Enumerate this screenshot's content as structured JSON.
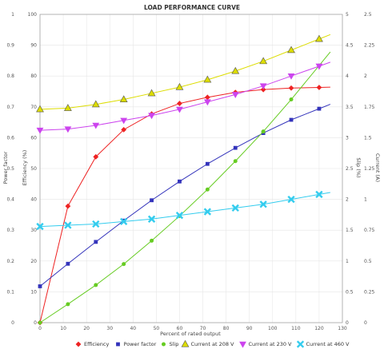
{
  "chart_data": {
    "type": "line",
    "title": "LOAD PERFORMANCE CURVE",
    "xlabel": "Percent of rated output",
    "ylabel_left_outer": "Power factor",
    "ylabel_left_inner": "Efficiency (%)",
    "ylabel_right_inner": "Slip (%)",
    "ylabel_right_outer": "Current (A)",
    "x_ticks": [
      "0",
      "10",
      "20",
      "30",
      "40",
      "50",
      "60",
      "70",
      "80",
      "90",
      "100",
      "110",
      "120",
      "130"
    ],
    "left_outer_ticks": [
      "0",
      "0.1",
      "0.2",
      "0.3",
      "0.4",
      "0.5",
      "0.6",
      "0.7",
      "0.8",
      "0.9",
      "1"
    ],
    "left_inner_ticks": [
      "0",
      "10",
      "20",
      "30",
      "40",
      "50",
      "60",
      "70",
      "80",
      "90",
      "100"
    ],
    "right_inner_ticks": [
      "0",
      "0.5",
      "1",
      "1.5",
      "2",
      "2.5",
      "3",
      "3.5",
      "4",
      "4.5",
      "5"
    ],
    "right_outer_ticks": [
      "0",
      "0.25",
      "0.5",
      "0.75",
      "1",
      "1.25",
      "1.5",
      "1.75",
      "2",
      "2.25",
      "2.5"
    ],
    "xlim": [
      0,
      130
    ],
    "ylim_percent": [
      0,
      100
    ],
    "x": [
      0,
      12,
      24,
      36,
      48,
      60,
      72,
      84,
      96,
      108,
      120
    ],
    "series": [
      {
        "name": "Efficiency",
        "color": "#ee2222",
        "marker": "diamond",
        "values": [
          0,
          37.8,
          53.8,
          62.6,
          67.7,
          71.1,
          73.1,
          74.7,
          75.6,
          76.1,
          76.3
        ]
      },
      {
        "name": "Power factor",
        "color": "#3333bb",
        "marker": "square",
        "values": [
          0.118,
          0.191,
          0.262,
          0.331,
          0.397,
          0.458,
          0.515,
          0.567,
          0.615,
          0.658,
          0.694
        ]
      },
      {
        "name": "Slip",
        "color": "#66cc22",
        "marker": "circle",
        "values": [
          0,
          0.3,
          0.61,
          0.95,
          1.33,
          1.73,
          2.16,
          2.62,
          3.1,
          3.62,
          4.17
        ]
      },
      {
        "name": "Current at 208 V",
        "color": "#dddd00",
        "marker": "triangle-up",
        "values": [
          1.73,
          1.74,
          1.77,
          1.81,
          1.86,
          1.91,
          1.97,
          2.04,
          2.12,
          2.21,
          2.3
        ]
      },
      {
        "name": "Current at 230 V",
        "color": "#cc44ee",
        "marker": "triangle-down",
        "values": [
          1.56,
          1.57,
          1.6,
          1.64,
          1.68,
          1.73,
          1.79,
          1.85,
          1.92,
          2.0,
          2.08
        ]
      },
      {
        "name": "Current at 460 V",
        "color": "#33ccee",
        "marker": "x",
        "values": [
          0.78,
          0.79,
          0.8,
          0.82,
          0.84,
          0.87,
          0.9,
          0.93,
          0.96,
          1.0,
          1.04
        ]
      }
    ],
    "grid": true,
    "legend": "bottom"
  }
}
